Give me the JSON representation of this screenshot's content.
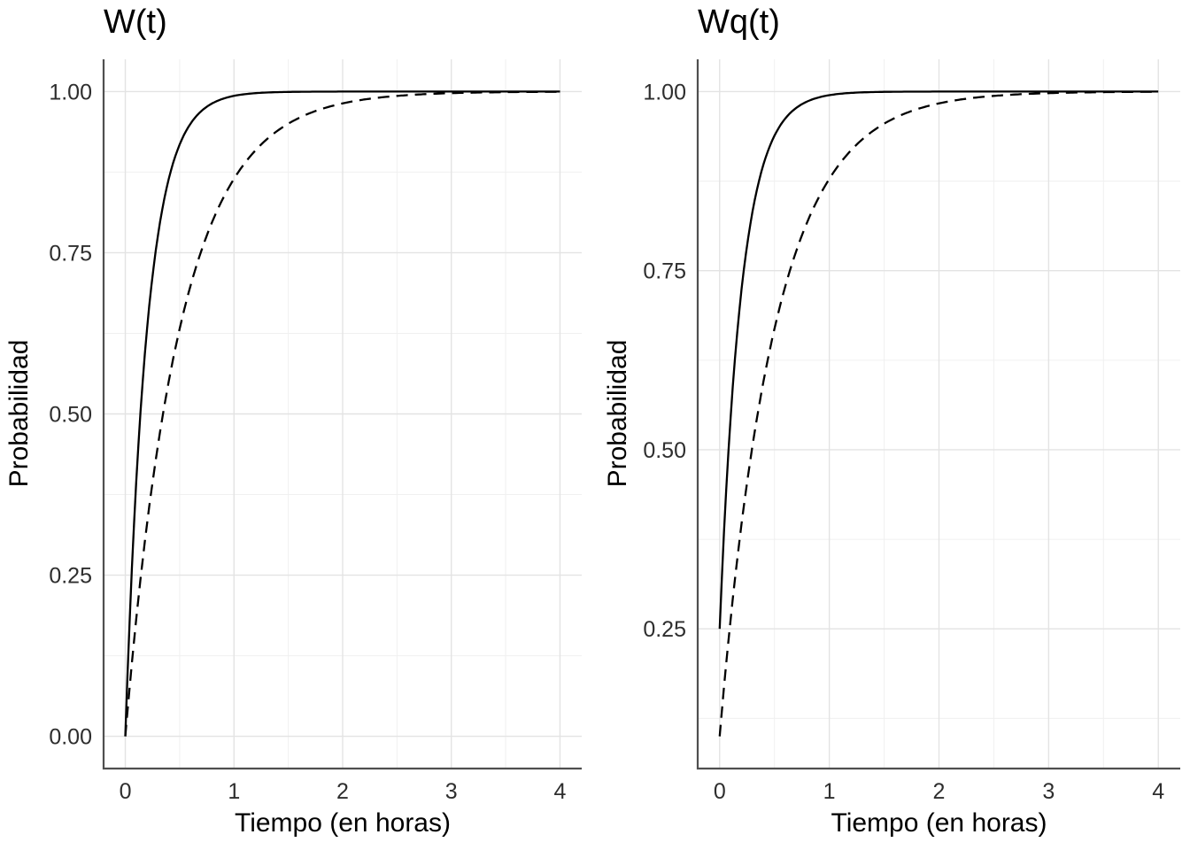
{
  "colors": {
    "background": "#FFFFFF",
    "curve": "#000000",
    "grid_major": "#E3E3E3",
    "grid_minor": "#F0F0F0",
    "axis_line": "#4F4F4F",
    "tick_label": "#2E2E2E",
    "title": "#000000"
  },
  "chart_data": [
    {
      "type": "line",
      "title": "W(t)",
      "xlabel": "Tiempo (en horas)",
      "ylabel": "Probabilidad",
      "xlim": [
        -0.2,
        4.2
      ],
      "ylim": [
        -0.05,
        1.05
      ],
      "x_ticks": [
        0,
        1,
        2,
        3,
        4
      ],
      "x_tick_labels": [
        "0",
        "1",
        "2",
        "3",
        "4"
      ],
      "x_minor_ticks": [
        0.5,
        1.5,
        2.5,
        3.5
      ],
      "y_ticks": [
        0,
        0.25,
        0.5,
        0.75,
        1
      ],
      "y_tick_labels": [
        "0.00",
        "0.25",
        "0.50",
        "0.75",
        "1.00"
      ],
      "y_minor_ticks": [
        0.125,
        0.375,
        0.625,
        0.875
      ],
      "grid": "major+minor",
      "legend": "none",
      "series": [
        {
          "name": "solid-curve",
          "linestyle": "solid",
          "amplitude": 1.0,
          "rate": 5,
          "t_range": [
            0,
            4
          ],
          "points": {
            "t": [
              0,
              0.1,
              0.2,
              0.3,
              0.4,
              0.5,
              0.75,
              1,
              1.5,
              2,
              3,
              4
            ],
            "y": [
              0,
              0.3935,
              0.6321,
              0.7769,
              0.8647,
              0.9179,
              0.9765,
              0.9933,
              0.9994,
              0.9999,
              1.0,
              1.0
            ]
          }
        },
        {
          "name": "dashed-curve",
          "linestyle": "dashed",
          "amplitude": 1.0,
          "rate": 2,
          "t_range": [
            0,
            4
          ],
          "points": {
            "t": [
              0,
              0.1,
              0.2,
              0.3,
              0.4,
              0.5,
              0.75,
              1,
              1.5,
              2,
              3,
              4
            ],
            "y": [
              0,
              0.1813,
              0.3297,
              0.4512,
              0.5507,
              0.6321,
              0.7769,
              0.8647,
              0.9502,
              0.9817,
              0.9975,
              0.9997
            ]
          }
        }
      ]
    },
    {
      "type": "line",
      "title": "Wq(t)",
      "xlabel": "Tiempo (en horas)",
      "ylabel": "Probabilidad",
      "xlim": [
        -0.2,
        4.2
      ],
      "ylim": [
        0.055,
        1.045
      ],
      "x_ticks": [
        0,
        1,
        2,
        3,
        4
      ],
      "x_tick_labels": [
        "0",
        "1",
        "2",
        "3",
        "4"
      ],
      "x_minor_ticks": [
        0.5,
        1.5,
        2.5,
        3.5
      ],
      "y_ticks": [
        0.25,
        0.5,
        0.75,
        1
      ],
      "y_tick_labels": [
        "0.25",
        "0.50",
        "0.75",
        "1.00"
      ],
      "y_minor_ticks": [
        0.125,
        0.375,
        0.625,
        0.875
      ],
      "grid": "major+minor",
      "legend": "none",
      "series": [
        {
          "name": "solid-curve",
          "linestyle": "solid",
          "amplitude": 0.75,
          "rate": 5,
          "t_range": [
            0,
            4
          ],
          "points": {
            "t": [
              0,
              0.1,
              0.2,
              0.3,
              0.4,
              0.5,
              0.75,
              1,
              1.5,
              2,
              3,
              4
            ],
            "y": [
              0.25,
              0.5451,
              0.7241,
              0.8327,
              0.8985,
              0.9384,
              0.9824,
              0.9949,
              0.9997,
              0.9999,
              1.0,
              1.0
            ]
          }
        },
        {
          "name": "dashed-curve",
          "linestyle": "dashed",
          "amplitude": 0.9,
          "rate": 2,
          "t_range": [
            0,
            4
          ],
          "points": {
            "t": [
              0,
              0.1,
              0.2,
              0.3,
              0.4,
              0.5,
              0.75,
              1,
              1.5,
              2,
              3,
              4
            ],
            "y": [
              0.1,
              0.2632,
              0.3967,
              0.5061,
              0.5956,
              0.6689,
              0.7992,
              0.8782,
              0.9552,
              0.9835,
              0.9978,
              0.9998
            ]
          }
        }
      ]
    }
  ]
}
